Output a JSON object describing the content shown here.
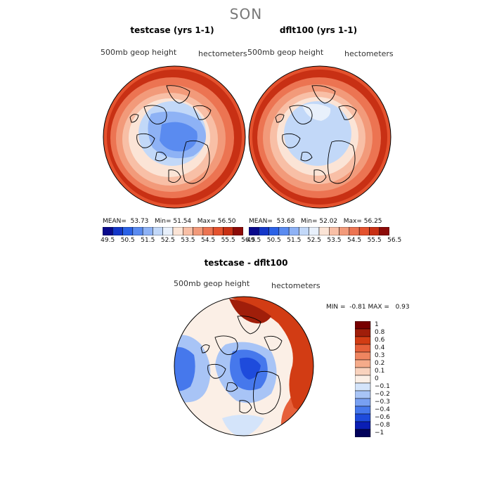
{
  "season": "SON",
  "colors": {
    "h_scale": [
      "#0a0a8c",
      "#1437c8",
      "#2b62e6",
      "#5a8bf0",
      "#8eb2f5",
      "#c2d8f8",
      "#e8f0fb",
      "#fbe4d6",
      "#f8bfa6",
      "#f29a7a",
      "#ec7452",
      "#e4522e",
      "#c83014",
      "#8c0b08"
    ],
    "d_scale": [
      "#00005a",
      "#0a1eb4",
      "#1e4bdc",
      "#4678ec",
      "#78a0f2",
      "#a8c4f6",
      "#d4e4fa",
      "#fbefe6",
      "#f9d2bd",
      "#f5ab8a",
      "#ef8560",
      "#e6603a",
      "#d23c14",
      "#a01e0a",
      "#780000"
    ]
  },
  "panel_left": {
    "title": "testcase (yrs 1-1)",
    "var_label": "500mb geop height",
    "units": "hectometers",
    "mean_label": "MEAN=",
    "mean": "53.73",
    "min_label": "Min=",
    "min": "51.54",
    "max_label": "Max=",
    "max": "56.50"
  },
  "panel_right": {
    "title": "dflt100 (yrs 1-1)",
    "var_label": "500mb geop height",
    "units": "hectometers",
    "mean_label": "MEAN=",
    "mean": "53.68",
    "min_label": "Min=",
    "min": "52.02",
    "max_label": "Max=",
    "max": "56.25"
  },
  "height_ticks": [
    "49.5",
    "50.5",
    "51.5",
    "52.5",
    "53.5",
    "54.5",
    "55.5",
    "56.5"
  ],
  "panel_diff": {
    "title": "testcase - dflt100",
    "var_label": "500mb geop height",
    "units": "hectometers",
    "min_label": "MIN =",
    "min": "-0.81",
    "max_label": "MAX =",
    "max": "0.93"
  },
  "diff_ticks": [
    "1",
    "0.8",
    "0.6",
    "0.4",
    "0.3",
    "0.2",
    "0.1",
    "0",
    "−0.1",
    "−0.2",
    "−0.3",
    "−0.4",
    "−0.6",
    "−0.8",
    "−1"
  ]
}
